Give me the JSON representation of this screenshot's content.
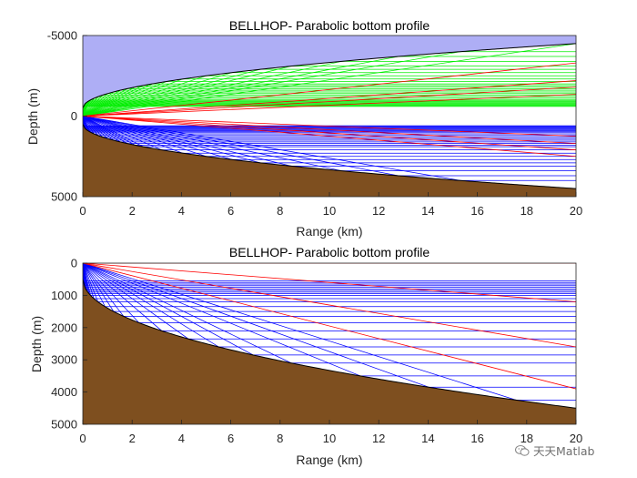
{
  "colors": {
    "water_top": "#aeaef5",
    "bottom": "#7e4f1f",
    "axis": "#262626",
    "boundary": "#000000",
    "ray_surface": "#00ee00",
    "ray_bottom": "#0000ff",
    "ray_both": "#ff0000"
  },
  "chart_data": [
    {
      "type": "line",
      "title": "BELLHOP- Parabolic bottom profile",
      "xlabel": "Range (km)",
      "ylabel": "Depth (m)",
      "xlim": [
        0,
        20
      ],
      "ylim": [
        -5000,
        5000
      ],
      "y_reversed": true,
      "xticks": [
        0,
        2,
        4,
        6,
        8,
        10,
        12,
        14,
        16,
        18,
        20
      ],
      "yticks": [
        -5000,
        0,
        5000
      ],
      "xtick_labels": [
        "0",
        "2",
        "4",
        "6",
        "8",
        "10",
        "12",
        "14",
        "16",
        "18",
        "20"
      ],
      "ytick_labels": [
        "-5000",
        "0",
        "5000"
      ],
      "boundary": "top: depth = -(500 + 4000*sqrt(x/20)); bottom: depth = 500 + 4000*sqrt(x/20)",
      "bottom_end_depth": 4500,
      "top_end_depth": -4500,
      "rays": {
        "green": [
          -600,
          -650,
          -700,
          -750,
          -800,
          -850,
          -900,
          -950,
          -1000,
          -1100,
          -1200,
          -1300,
          -1400,
          -1500,
          -1600,
          -1700,
          -1800,
          -1900,
          -2000,
          -2150,
          -2300,
          -2500,
          -2700,
          -2900,
          -3100,
          -3400,
          -3700,
          -4000,
          -4500
        ],
        "blue": [
          600,
          650,
          700,
          750,
          800,
          850,
          900,
          950,
          1000,
          1100,
          1200,
          1300,
          1400,
          1500,
          1600,
          1700,
          1800,
          1900,
          2100,
          2300,
          2500,
          2700,
          2900,
          3100,
          3400,
          3700,
          4000
        ],
        "red": [
          -3300,
          -2200,
          -1800,
          -1350,
          1250,
          1700,
          2100,
          2500
        ]
      }
    },
    {
      "type": "line",
      "title": "BELLHOP- Parabolic bottom profile",
      "xlabel": "Range (km)",
      "ylabel": "Depth (m)",
      "xlim": [
        0,
        20
      ],
      "ylim": [
        0,
        5000
      ],
      "y_reversed": true,
      "xticks": [
        0,
        2,
        4,
        6,
        8,
        10,
        12,
        14,
        16,
        18,
        20
      ],
      "yticks": [
        0,
        1000,
        2000,
        3000,
        4000,
        5000
      ],
      "xtick_labels": [
        "0",
        "2",
        "4",
        "6",
        "8",
        "10",
        "12",
        "14",
        "16",
        "18",
        "20"
      ],
      "ytick_labels": [
        "0",
        "1000",
        "2000",
        "3000",
        "4000",
        "5000"
      ],
      "boundary": "bottom: depth = 500 + 4000*sqrt(x/20); surface: depth = 0",
      "bottom_end_depth": 4500,
      "rays": {
        "blue": [
          550,
          600,
          650,
          700,
          750,
          800,
          850,
          900,
          950,
          1000,
          1100,
          1200,
          1350,
          1500,
          1650,
          1850,
          2100,
          2350,
          2600,
          2850,
          3100,
          3500,
          3850,
          4250
        ],
        "red": [
          0,
          1200,
          2600,
          3900
        ]
      }
    }
  ],
  "watermark": {
    "text": "天天Matlab"
  }
}
